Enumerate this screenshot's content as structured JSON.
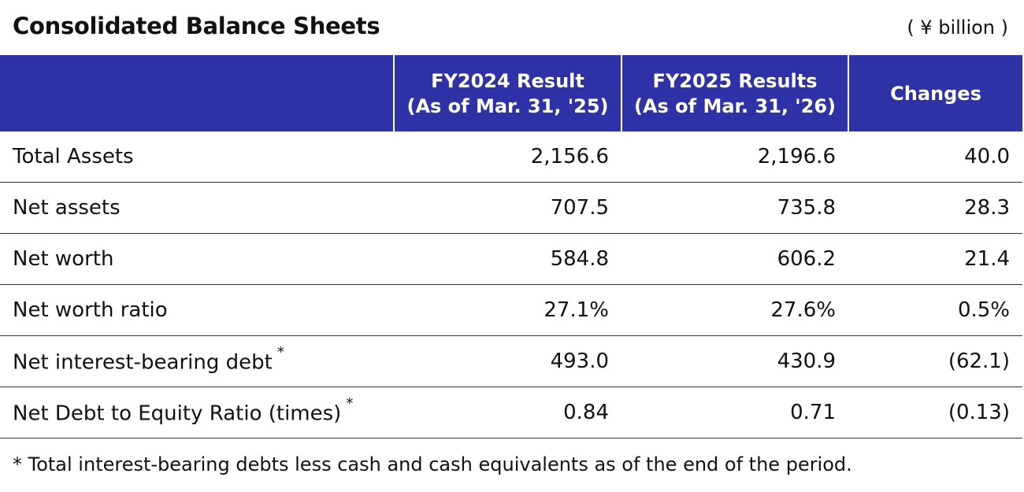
{
  "title": "Consolidated Balance Sheets",
  "unit": "( ¥ billion )",
  "header": {
    "col1_line1": "FY2024 Result",
    "col1_line2": "(As of Mar. 31, '25)",
    "col2_line1": "FY2025 Results",
    "col2_line2": "(As of Mar. 31, '26)",
    "col3": "Changes"
  },
  "rows": [
    {
      "label": "Total Assets",
      "marker": "",
      "fy2024": "2,156.6",
      "fy2025": "2,196.6",
      "change": "40.0"
    },
    {
      "label": "Net assets",
      "marker": "",
      "fy2024": "707.5",
      "fy2025": "735.8",
      "change": "28.3"
    },
    {
      "label": "Net worth",
      "marker": "",
      "fy2024": "584.8",
      "fy2025": "606.2",
      "change": "21.4"
    },
    {
      "label": "Net worth ratio",
      "marker": "",
      "fy2024": "27.1%",
      "fy2025": "27.6%",
      "change": "0.5%"
    },
    {
      "label": "Net interest-bearing debt",
      "marker": "*",
      "fy2024": "493.0",
      "fy2025": "430.9",
      "change": "(62.1)"
    },
    {
      "label": "Net Debt to Equity Ratio (times)",
      "marker": "*",
      "fy2024": "0.84",
      "fy2025": "0.71",
      "change": "(0.13)"
    }
  ],
  "footnote": "* Total interest-bearing debts less cash and cash equivalents as of the end of the period.",
  "colors": {
    "header_bg": "#2e32a6",
    "header_text": "#ffffff",
    "rule": "#333333"
  }
}
